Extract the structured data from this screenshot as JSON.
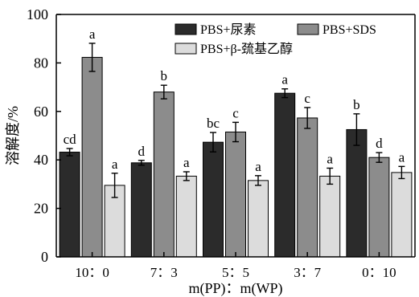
{
  "chart_data": {
    "type": "bar",
    "categories": [
      "10：0",
      "7：3",
      "5：5",
      "3：7",
      "0：10"
    ],
    "xlabel": "m(PP)：m(WP)",
    "ylabel": "溶解度/%",
    "ylim": [
      0,
      100
    ],
    "yticks": [
      0,
      20,
      40,
      60,
      80,
      100
    ],
    "legend_position": "top-right",
    "series": [
      {
        "name": "PBS+尿素",
        "color": "#2b2b2b",
        "values": [
          43.2,
          38.8,
          47.3,
          67.5,
          52.5
        ],
        "errors": [
          1.5,
          1.0,
          4.0,
          1.8,
          6.5
        ],
        "labels": [
          "cd",
          "d",
          "bc",
          "a",
          "b"
        ]
      },
      {
        "name": "PBS+SDS",
        "color": "#8c8c8c",
        "values": [
          82.3,
          68.0,
          51.5,
          57.3,
          41.0
        ],
        "errors": [
          5.8,
          2.8,
          4.0,
          4.3,
          2.0
        ],
        "labels": [
          "a",
          "b",
          "c",
          "c",
          "d"
        ]
      },
      {
        "name": "PBS+β-巯基乙醇",
        "color": "#dcdcdc",
        "values": [
          29.5,
          33.3,
          31.5,
          33.3,
          34.8
        ],
        "errors": [
          5.0,
          1.8,
          2.0,
          3.3,
          2.5
        ],
        "labels": [
          "a",
          "a",
          "a",
          "a",
          "a"
        ]
      }
    ]
  }
}
